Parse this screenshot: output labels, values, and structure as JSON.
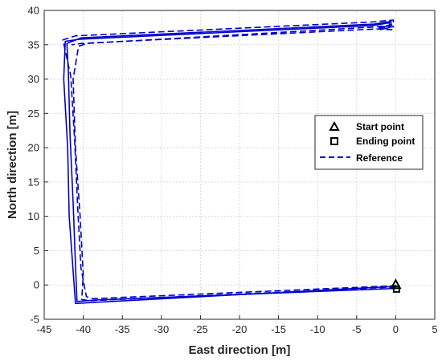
{
  "chart_data": {
    "type": "line",
    "xlabel": "East direction [m]",
    "ylabel": "North direction [m]",
    "xlim": [
      -45,
      5
    ],
    "ylim": [
      -5,
      40
    ],
    "xticks": [
      -45,
      -40,
      -35,
      -30,
      -25,
      -20,
      -15,
      -10,
      -5,
      0,
      5
    ],
    "yticks": [
      -5,
      0,
      5,
      10,
      15,
      20,
      25,
      30,
      35,
      40
    ],
    "grid": true,
    "legend_position": "right",
    "colors": {
      "trajectory": "#0000cc",
      "markers": "#000000"
    },
    "series": [
      {
        "style": "solid",
        "x": [
          0,
          -38,
          -41,
          -41.3,
          -41.8,
          -42.0,
          -42.5,
          -42.3,
          -40.5,
          -3,
          -0.8,
          -0.8,
          -2
        ],
        "y": [
          -0.2,
          -2.5,
          -2.7,
          2,
          10,
          20,
          30,
          35.5,
          35.8,
          37.8,
          38.2,
          37.5,
          37.2
        ]
      },
      {
        "style": "solid",
        "x": [
          0.2,
          -38.5,
          -40.8,
          -41.0,
          -41.3,
          -41.7,
          -41.9,
          -42.1,
          -40.3,
          -2.8,
          -0.6,
          -0.6,
          -2.2
        ],
        "y": [
          -0.5,
          -2.2,
          -2.4,
          3,
          12,
          22,
          31,
          35.2,
          36.0,
          38.0,
          38.4,
          37.8,
          37.5
        ]
      },
      {
        "name": "Reference",
        "style": "dashed",
        "x": [
          0,
          -39.3,
          -40.2,
          -40.0,
          -40.4,
          -41.0,
          -41.3,
          -40.6,
          -39.5,
          -2.5,
          -0.5,
          -0.5,
          -2.5,
          -40.2,
          -41.5
        ],
        "y": [
          -0.3,
          -2.3,
          -2.1,
          1.5,
          10,
          20,
          30,
          34.8,
          35.2,
          37.6,
          37.9,
          37.2,
          37.3,
          35.2,
          35.0
        ]
      },
      {
        "style": "dashed",
        "x": [
          0.1,
          -38.8,
          -39.6,
          -40.3,
          -40.7,
          -41.1,
          -41.6,
          -42.6,
          -41.0,
          -3.2,
          -0.3,
          -0.3,
          -2.6
        ],
        "y": [
          -0.1,
          -2.0,
          -1.7,
          2.5,
          11,
          21,
          30.5,
          35.7,
          36.3,
          38.3,
          38.6,
          37.6,
          37.4
        ]
      }
    ],
    "markers": [
      {
        "label": "Start point",
        "symbol": "triangle",
        "x": 0,
        "y": 0
      },
      {
        "label": "Ending point",
        "symbol": "square",
        "x": 0.1,
        "y": -0.6
      }
    ],
    "legend": [
      "Start point",
      "Ending point",
      "Reference"
    ]
  }
}
